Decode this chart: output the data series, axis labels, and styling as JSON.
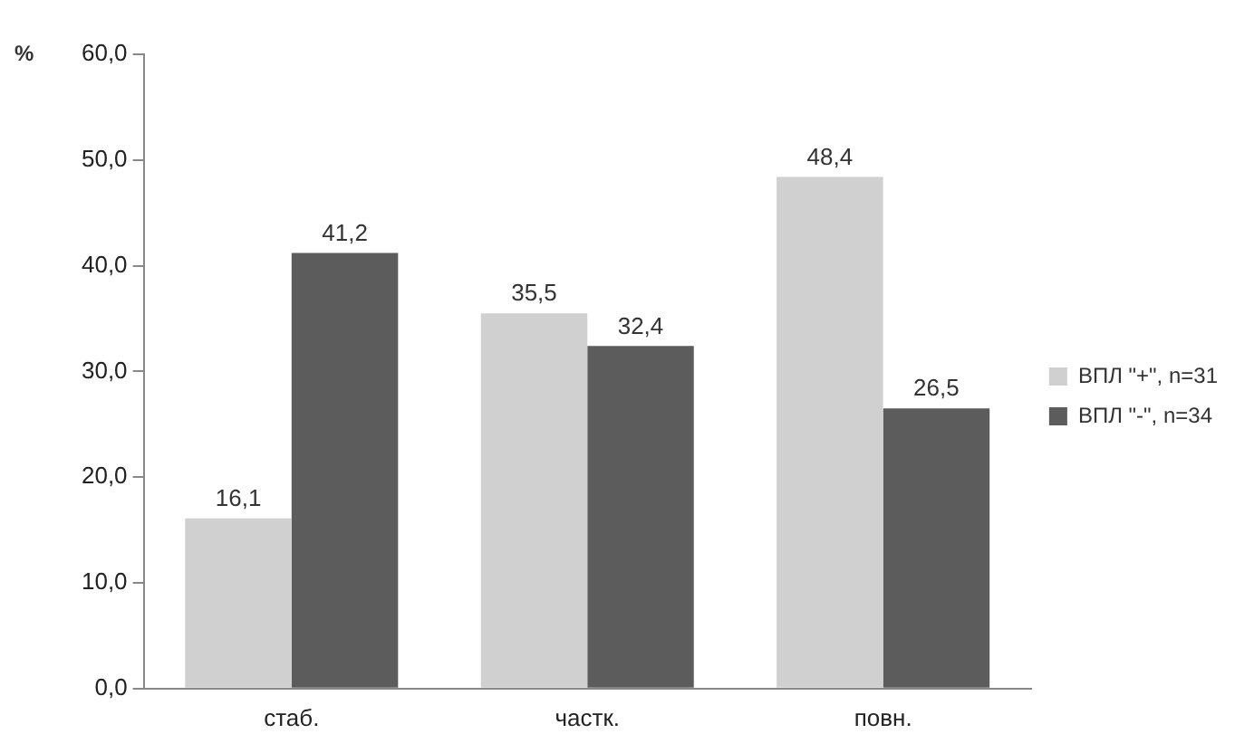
{
  "chart_data": {
    "type": "bar",
    "ylabel": "%",
    "categories": [
      "стаб.",
      "частк.",
      "повн."
    ],
    "series": [
      {
        "name": "ВПЛ \"+\", n=31",
        "color": "#d0d0d0",
        "values": [
          16.1,
          35.5,
          48.4
        ],
        "value_labels": [
          "16,1",
          "35,5",
          "48,4"
        ]
      },
      {
        "name": "ВПЛ \"-\", n=34",
        "color": "#5c5c5c",
        "values": [
          41.2,
          32.4,
          26.5
        ],
        "value_labels": [
          "41,2",
          "32,4",
          "26,5"
        ]
      }
    ],
    "ylim": [
      0,
      60
    ],
    "yticks": [
      {
        "value": 0,
        "label": "0,0"
      },
      {
        "value": 10,
        "label": "10,0"
      },
      {
        "value": 20,
        "label": "20,0"
      },
      {
        "value": 30,
        "label": "30,0"
      },
      {
        "value": 40,
        "label": "40,0"
      },
      {
        "value": 50,
        "label": "50,0"
      },
      {
        "value": 60,
        "label": "60,0"
      }
    ],
    "grid": false,
    "legend": "right"
  }
}
